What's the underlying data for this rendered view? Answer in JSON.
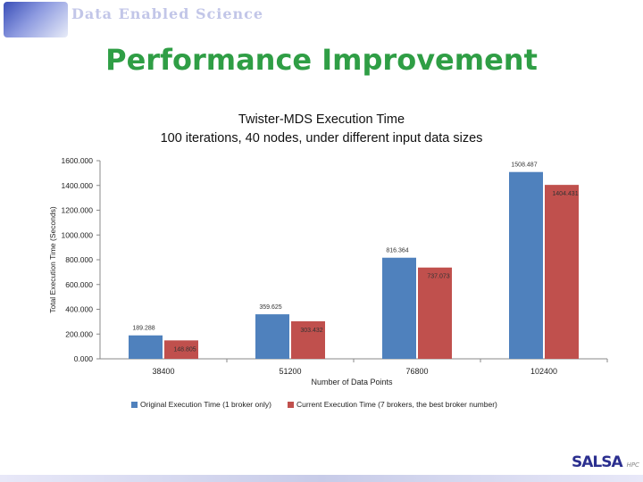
{
  "header": {
    "text": "Data Enabled Science",
    "colors": {
      "header_text": "#c2c6e8",
      "title": "#2f9e45"
    }
  },
  "page_title": "Performance Improvement",
  "chart_data": {
    "type": "bar",
    "title_line1": "Twister-MDS Execution Time",
    "title_line2": "100 iterations, 40 nodes, under different input data sizes",
    "xlabel": "Number of Data Points",
    "ylabel": "Total Execution Time (Seconds)",
    "categories": [
      "38400",
      "51200",
      "76800",
      "102400"
    ],
    "ylim": [
      0,
      1600
    ],
    "yticks": [
      0,
      200,
      400,
      600,
      800,
      1000,
      1200,
      1400,
      1600
    ],
    "ytick_labels": [
      "0.000",
      "200.000",
      "400.000",
      "600.000",
      "800.000",
      "1000.000",
      "1200.000",
      "1400.000",
      "1600.000"
    ],
    "grid": false,
    "legend_position": "bottom",
    "series": [
      {
        "name": "Original Execution Time (1 broker only)",
        "color": "#4f81bd",
        "values": [
          189.288,
          359.625,
          816.364,
          1508.487
        ],
        "labels": [
          "189.288",
          "359.625",
          "816.364",
          "1508.487"
        ]
      },
      {
        "name": "Current Execution Time (7 brokers, the best broker number)",
        "color": "#c0504d",
        "values": [
          148.805,
          303.432,
          737.073,
          1404.431
        ],
        "labels": [
          "148.805",
          "303.432",
          "737.073",
          "1404.431"
        ]
      }
    ]
  },
  "footer": {
    "logo_main": "SALSA",
    "logo_sub": "HPC"
  }
}
